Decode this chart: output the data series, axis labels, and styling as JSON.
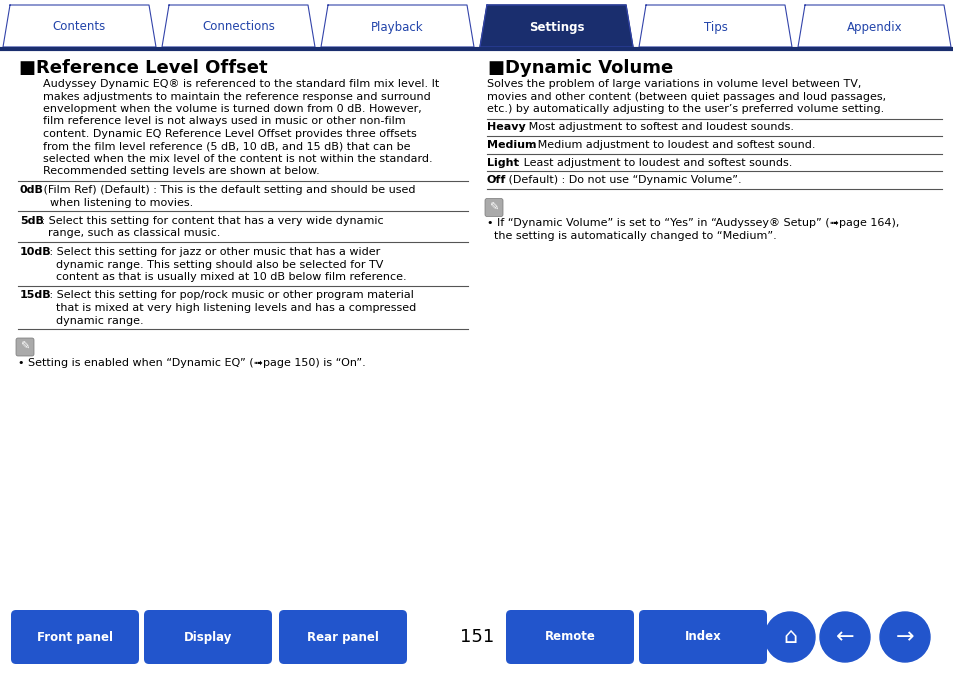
{
  "bg_color": "#ffffff",
  "tab_labels": [
    "Contents",
    "Connections",
    "Playback",
    "Settings",
    "Tips",
    "Appendix"
  ],
  "active_tab": 3,
  "tab_active_bg": "#1a2e6e",
  "tab_inactive_bg": "#ffffff",
  "tab_active_fg": "#ffffff",
  "tab_inactive_fg": "#2244aa",
  "tab_border_color": "#3344aa",
  "tab_line_color": "#1a2e6e",
  "bottom_buttons_left": [
    "Front panel",
    "Display",
    "Rear panel"
  ],
  "bottom_buttons_right": [
    "Remote",
    "Index"
  ],
  "bottom_btn_bg": "#2255cc",
  "bottom_btn_fg": "#ffffff",
  "page_number": "151",
  "left_title": "Reference Level Offset",
  "left_body_lines": [
    "Audyssey Dynamic EQ® is referenced to the standard film mix level. It",
    "makes adjustments to maintain the reference response and surround",
    "envelopment when the volume is turned down from 0 dB. However,",
    "film reference level is not always used in music or other non-film",
    "content. Dynamic EQ Reference Level Offset provides three offsets",
    "from the film level reference (5 dB, 10 dB, and 15 dB) that can be",
    "selected when the mix level of the content is not within the standard.",
    "Recommended setting levels are shown at below."
  ],
  "left_table": [
    {
      "key": "0dB",
      "rest": " (Film Ref) (Default) : This is the default setting and should be used",
      "cont": [
        "when listening to movies."
      ]
    },
    {
      "key": "5dB",
      "rest": " : Select this setting for content that has a very wide dynamic",
      "cont": [
        "range, such as classical music."
      ]
    },
    {
      "key": "10dB",
      "rest": " : Select this setting for jazz or other music that has a wider",
      "cont": [
        "dynamic range. This setting should also be selected for TV",
        "content as that is usually mixed at 10 dB below film reference."
      ]
    },
    {
      "key": "15dB",
      "rest": " : Select this setting for pop/rock music or other program material",
      "cont": [
        "that is mixed at very high listening levels and has a compressed",
        "dynamic range."
      ]
    }
  ],
  "left_note_line1": "• Setting is enabled when “Dynamic EQ” (➟page 150) is “On”.",
  "right_title": "Dynamic Volume",
  "right_body_lines": [
    "Solves the problem of large variations in volume level between TV,",
    "movies and other content (between quiet passages and loud passages,",
    "etc.) by automatically adjusting to the user’s preferred volume setting."
  ],
  "right_table": [
    {
      "key": "Heavy",
      "rest": " : Most adjustment to softest and loudest sounds."
    },
    {
      "key": "Medium",
      "rest": " : Medium adjustment to loudest and softest sound."
    },
    {
      "key": "Light",
      "rest": " : Least adjustment to loudest and softest sounds."
    },
    {
      "key": "Off",
      "rest": " (Default) : Do not use “Dynamic Volume”."
    }
  ],
  "right_note_lines": [
    "• If “Dynamic Volume” is set to “Yes” in “Audyssey® Setup” (➟page 164),",
    "  the setting is automatically changed to “Medium”."
  ],
  "divider_color": "#555555",
  "body_fontsize": 8.0,
  "title_fontsize": 13.0
}
